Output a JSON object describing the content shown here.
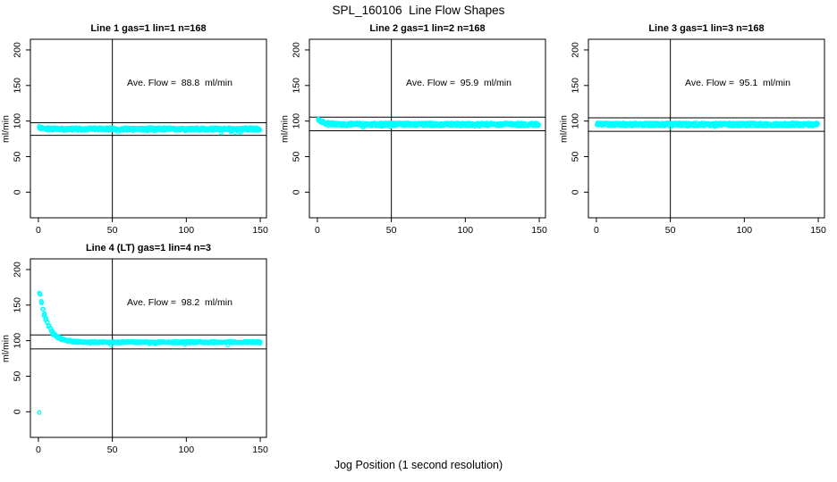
{
  "figure": {
    "main_title": "SPL_160106  Line Flow Shapes",
    "x_axis_caption": "Jog Position (1 second resolution)"
  },
  "chart_data": [
    {
      "type": "scatter",
      "title": "Line 1 gas=1 lin=1 n=168",
      "annotation": "Ave. Flow =  88.8  ml/min",
      "avg_flow_ml_min": 88.8,
      "ylabel": "ml/min",
      "x_ticks": [
        0,
        50,
        100,
        150
      ],
      "y_ticks": [
        0,
        50,
        100,
        150,
        200
      ],
      "xlim": [
        -5.4,
        154.2
      ],
      "ylim": [
        -36,
        215
      ],
      "grid": false,
      "ref_vline_x": 50,
      "ref_hlines": [
        97.7,
        79.9
      ],
      "marker_color": "#00FFFF",
      "band": {
        "x_start": 0.5,
        "x_end": 150,
        "x_step": 0.55,
        "points_per_x": 2,
        "x_jitter": 0.5,
        "start_y": 90.8,
        "settle_y": 88.8,
        "decay_tau": 2.0,
        "half_width": 2.1
      },
      "outliers": []
    },
    {
      "type": "scatter",
      "title": "Line 2 gas=1 lin=2 n=168",
      "annotation": "Ave. Flow =  95.9  ml/min",
      "avg_flow_ml_min": 95.9,
      "ylabel": "ml/min",
      "x_ticks": [
        0,
        50,
        100,
        150
      ],
      "y_ticks": [
        0,
        50,
        100,
        150,
        200
      ],
      "xlim": [
        -5.4,
        154.2
      ],
      "ylim": [
        -36,
        215
      ],
      "grid": false,
      "ref_vline_x": 50,
      "ref_hlines": [
        105.5,
        86.3
      ],
      "marker_color": "#00FFFF",
      "band": {
        "x_start": 0.5,
        "x_end": 150,
        "x_step": 0.55,
        "points_per_x": 2,
        "x_jitter": 0.5,
        "start_y": 103.5,
        "settle_y": 95.5,
        "decay_tau": 3.2,
        "half_width": 2.0
      },
      "outliers": []
    },
    {
      "type": "scatter",
      "title": "Line 3 gas=1 lin=3 n=168",
      "annotation": "Ave. Flow =  95.1  ml/min",
      "avg_flow_ml_min": 95.1,
      "ylabel": "ml/min",
      "x_ticks": [
        0,
        50,
        100,
        150
      ],
      "y_ticks": [
        0,
        50,
        100,
        150,
        200
      ],
      "xlim": [
        -5.4,
        154.2
      ],
      "ylim": [
        -36,
        215
      ],
      "grid": false,
      "ref_vline_x": 50,
      "ref_hlines": [
        104.6,
        85.6
      ],
      "marker_color": "#00FFFF",
      "band": {
        "x_start": 0.5,
        "x_end": 150,
        "x_step": 0.55,
        "points_per_x": 2,
        "x_jitter": 0.5,
        "start_y": 96.5,
        "settle_y": 95.4,
        "decay_tau": 1.0,
        "half_width": 2.1
      },
      "outliers": []
    },
    {
      "type": "scatter",
      "title": "Line 4 (LT) gas=1 lin=4 n=3",
      "annotation": "Ave. Flow =  98.2  ml/min",
      "avg_flow_ml_min": 98.2,
      "ylabel": "ml/min",
      "x_ticks": [
        0,
        50,
        100,
        150
      ],
      "y_ticks": [
        0,
        50,
        100,
        150,
        200
      ],
      "xlim": [
        -5.4,
        154.2
      ],
      "ylim": [
        -36,
        215
      ],
      "grid": false,
      "ref_vline_x": 50,
      "ref_hlines": [
        108.0,
        88.4
      ],
      "marker_color": "#00FFFF",
      "band": {
        "x_start": 1,
        "x_end": 150,
        "x_step": 1,
        "points_per_x": 3,
        "x_jitter": 0.5,
        "start_y": 166,
        "settle_y": 97.8,
        "decay_tau": 5.5,
        "half_width": 1.2
      },
      "outliers": [
        [
          0.5,
          -1
        ]
      ]
    }
  ]
}
